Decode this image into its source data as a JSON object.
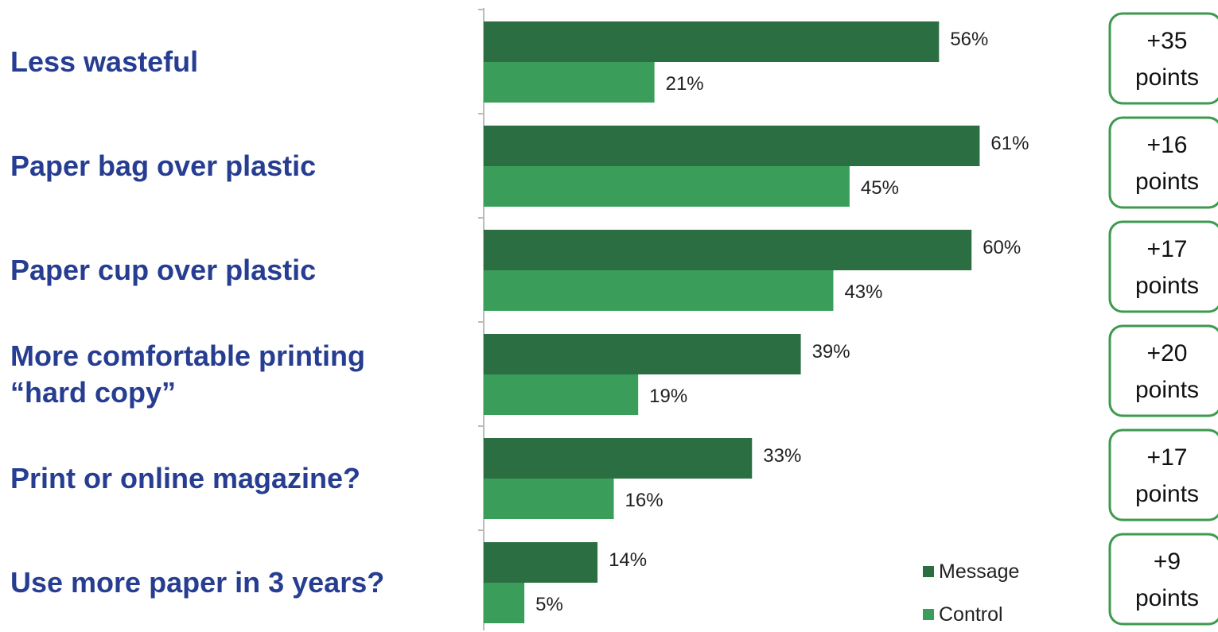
{
  "chart_data": {
    "type": "bar",
    "orientation": "horizontal",
    "categories": [
      "Less wasteful",
      "Paper bag over plastic",
      "Paper cup over plastic",
      "More comfortable printing “hard copy”",
      "Print or online magazine?",
      "Use more paper in 3 years?"
    ],
    "series": [
      {
        "name": "Message",
        "values": [
          56,
          61,
          60,
          39,
          33,
          14
        ],
        "labels": [
          "56%",
          "61%",
          "60%",
          "39%",
          "33%",
          "14%"
        ],
        "color": "#2a6e41"
      },
      {
        "name": "Control",
        "values": [
          21,
          45,
          43,
          19,
          16,
          5
        ],
        "labels": [
          "21%",
          "45%",
          "43%",
          "19%",
          "16%",
          "5%"
        ],
        "color": "#3a9e5a"
      }
    ],
    "differences": [
      {
        "value": "+35",
        "unit": "points"
      },
      {
        "value": "+16",
        "unit": "points"
      },
      {
        "value": "+17",
        "unit": "points"
      },
      {
        "value": "+20",
        "unit": "points"
      },
      {
        "value": "+17",
        "unit": "points"
      },
      {
        "value": "+9",
        "unit": "points"
      }
    ],
    "xlim": [
      0,
      100
    ],
    "grid": false,
    "legend": {
      "placement": "bottom-right",
      "entries": [
        "Message",
        "Control"
      ]
    },
    "title": "",
    "xlabel": "",
    "ylabel": ""
  },
  "colors": {
    "category_text": "#263d91",
    "box_border": "#3d9a4f",
    "axis": "#bbbbbb"
  }
}
